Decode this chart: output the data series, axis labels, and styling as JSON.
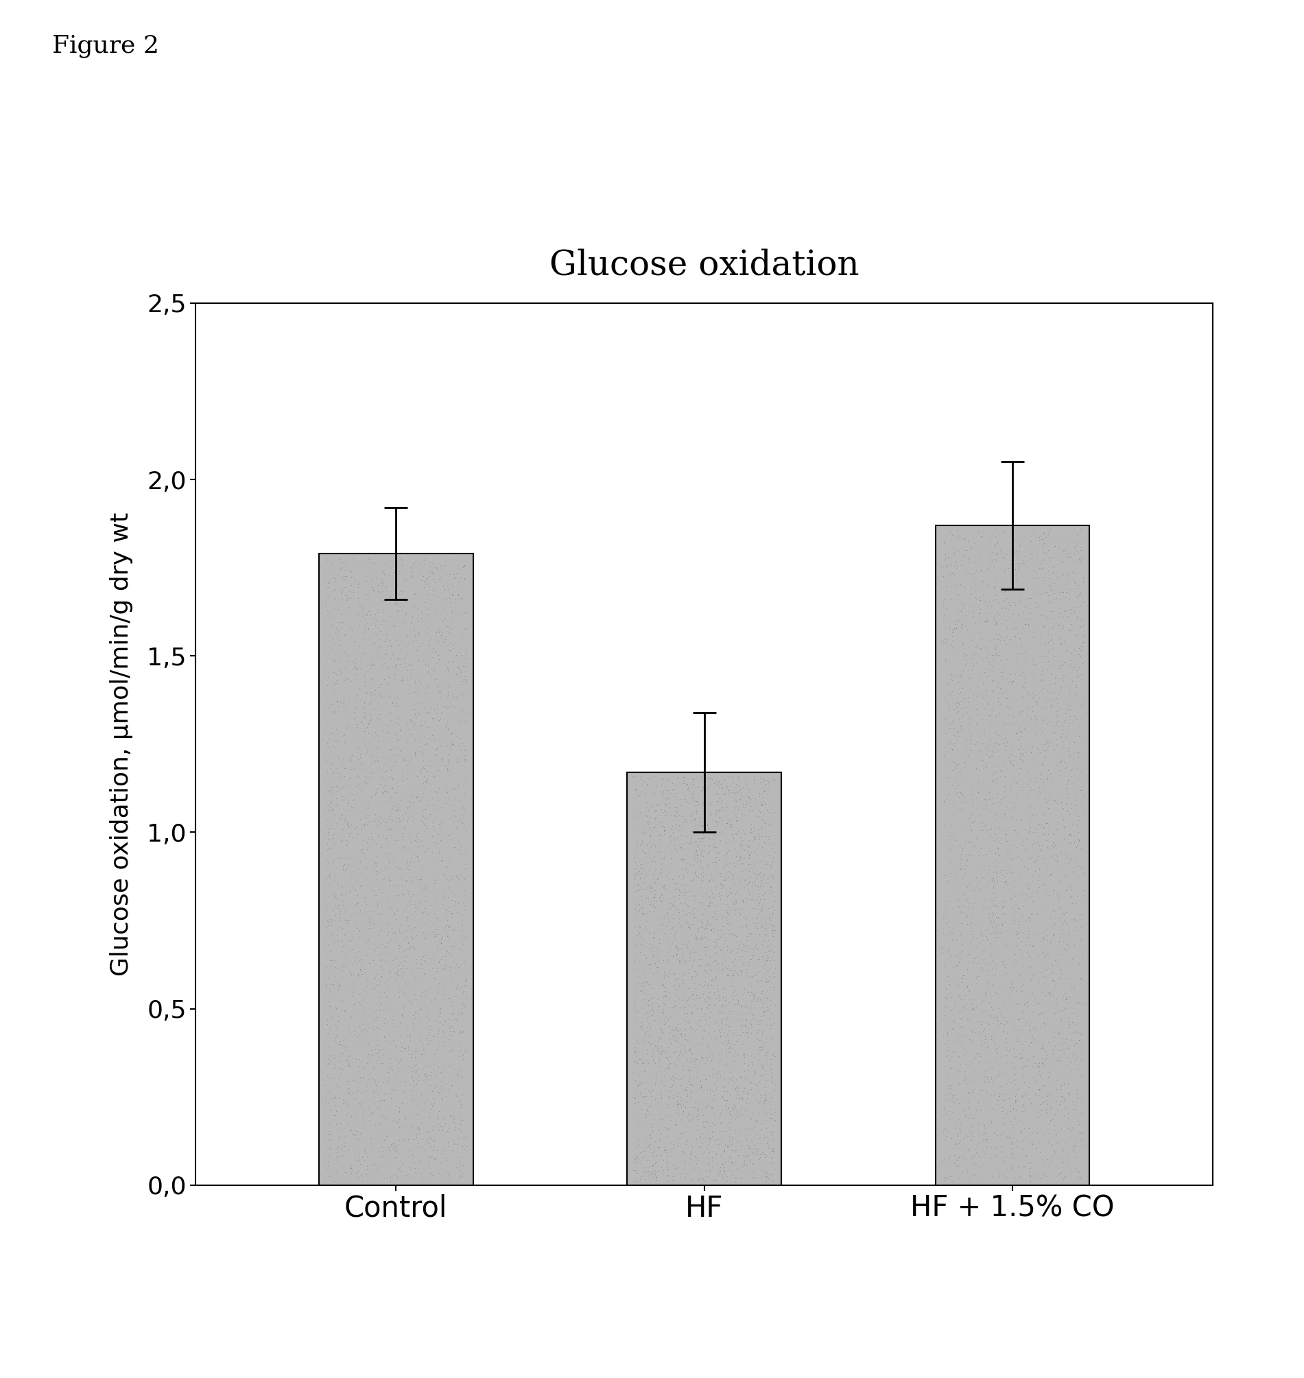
{
  "title": "Glucose oxidation",
  "figure_label": "Figure 2",
  "ylabel": "Glucose oxidation, μmol/min/g dry wt",
  "categories": [
    "Control",
    "HF",
    "HF + 1.5% CO"
  ],
  "values": [
    1.79,
    1.17,
    1.87
  ],
  "errors": [
    0.13,
    0.17,
    0.18
  ],
  "ylim": [
    0.0,
    2.5
  ],
  "yticks": [
    0.0,
    0.5,
    1.0,
    1.5,
    2.0,
    2.5
  ],
  "ytick_labels": [
    "0,0",
    "0,5",
    "1,0",
    "1,5",
    "2,0",
    "2,5"
  ],
  "bar_color": "#b8b8b8",
  "bar_edgecolor": "#000000",
  "bar_width": 0.5,
  "background_color": "#ffffff",
  "title_fontsize": 36,
  "axis_label_fontsize": 26,
  "tick_fontsize": 26,
  "xlabel_fontsize": 30,
  "figure_label_fontsize": 26,
  "error_capsize": 12,
  "error_linewidth": 2.0
}
